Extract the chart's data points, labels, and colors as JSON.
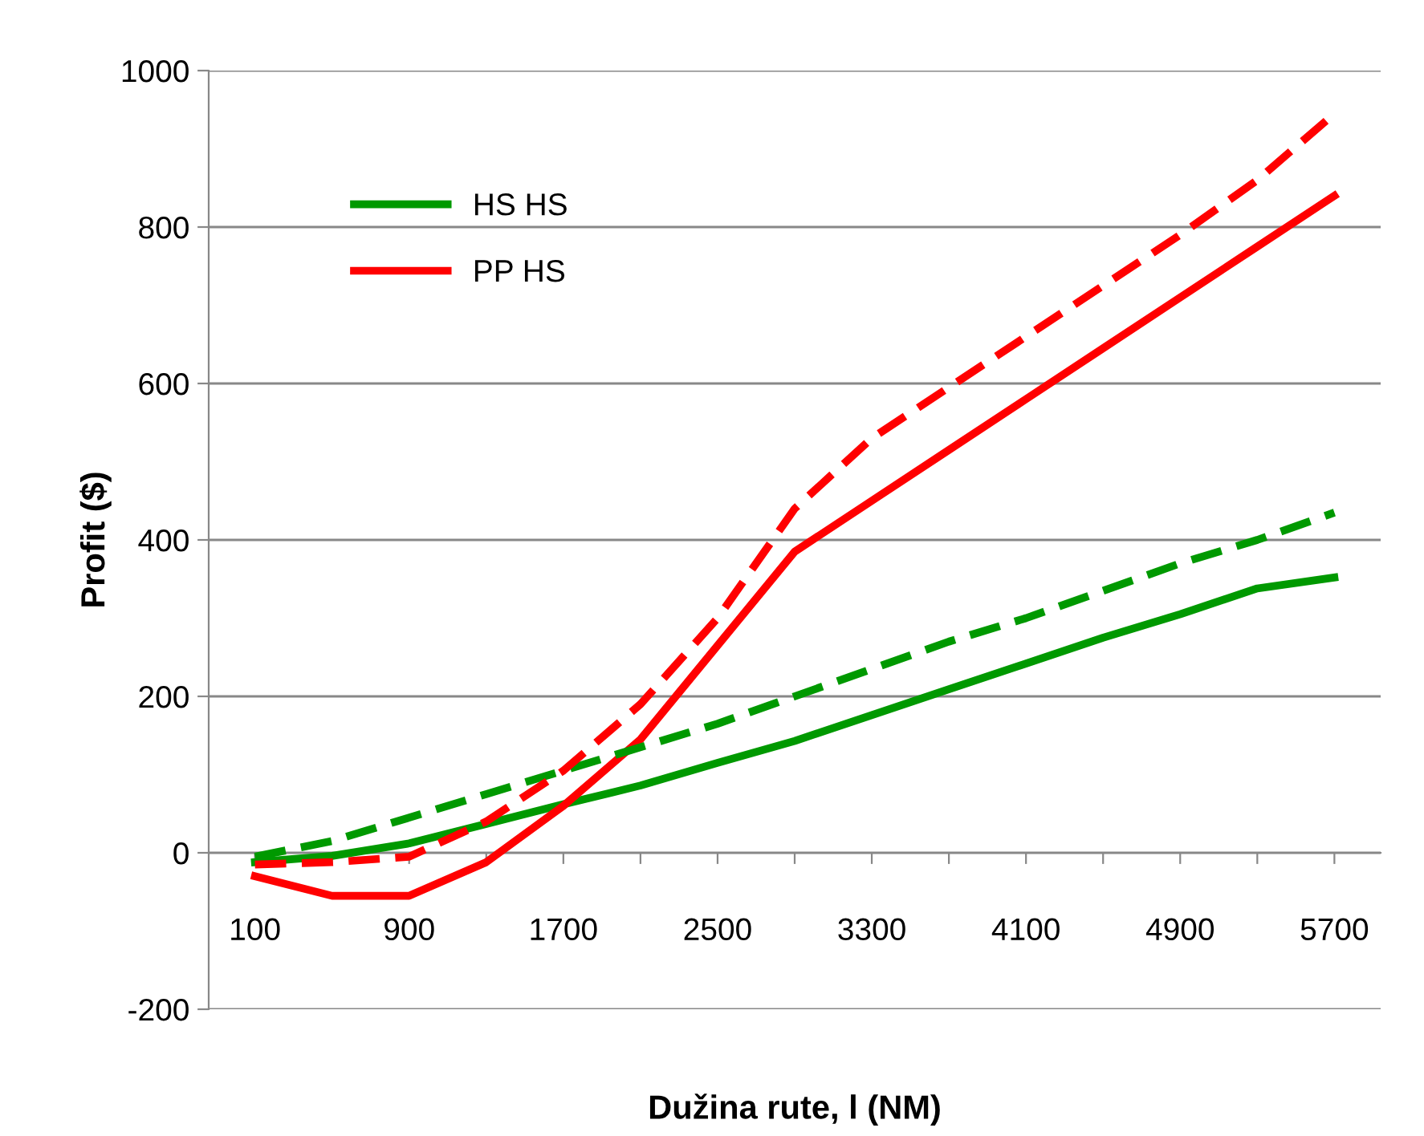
{
  "chart_data": {
    "type": "line",
    "xlabel": "Dužina rute, l (NM)",
    "ylabel": "Profit ($)",
    "categories": [
      "100",
      null,
      "900",
      null,
      "1700",
      null,
      "2500",
      null,
      "3300",
      null,
      "4100",
      null,
      "4900",
      null,
      "5700"
    ],
    "series": [
      {
        "name": "HS HS",
        "color": "#009900",
        "line_style": "solid",
        "values": [
          -12,
          -4,
          12,
          37,
          62,
          86,
          115,
          143,
          176,
          209,
          242,
          275,
          305,
          338,
          352
        ]
      },
      {
        "name": "PP HS",
        "color": "#ff0000",
        "line_style": "solid",
        "values": [
          -30,
          -55,
          -55,
          -12,
          60,
          145,
          265,
          385,
          450,
          515,
          580,
          645,
          710,
          775,
          840
        ]
      },
      {
        "color": "#009900",
        "line_style": "dashed",
        "values": [
          -5,
          15,
          45,
          75,
          105,
          135,
          165,
          200,
          235,
          270,
          300,
          335,
          370,
          400,
          435
        ]
      },
      {
        "color": "#ff0000",
        "line_style": "dashed",
        "values": [
          -15,
          -12,
          -5,
          40,
          105,
          190,
          300,
          440,
          530,
          595,
          660,
          725,
          790,
          860,
          945
        ]
      }
    ],
    "ylim": [
      -200,
      1000
    ],
    "yticks": [
      -200,
      0,
      200,
      400,
      600,
      800,
      1000
    ],
    "grid": "y",
    "legend": "top left",
    "marker": "none"
  }
}
